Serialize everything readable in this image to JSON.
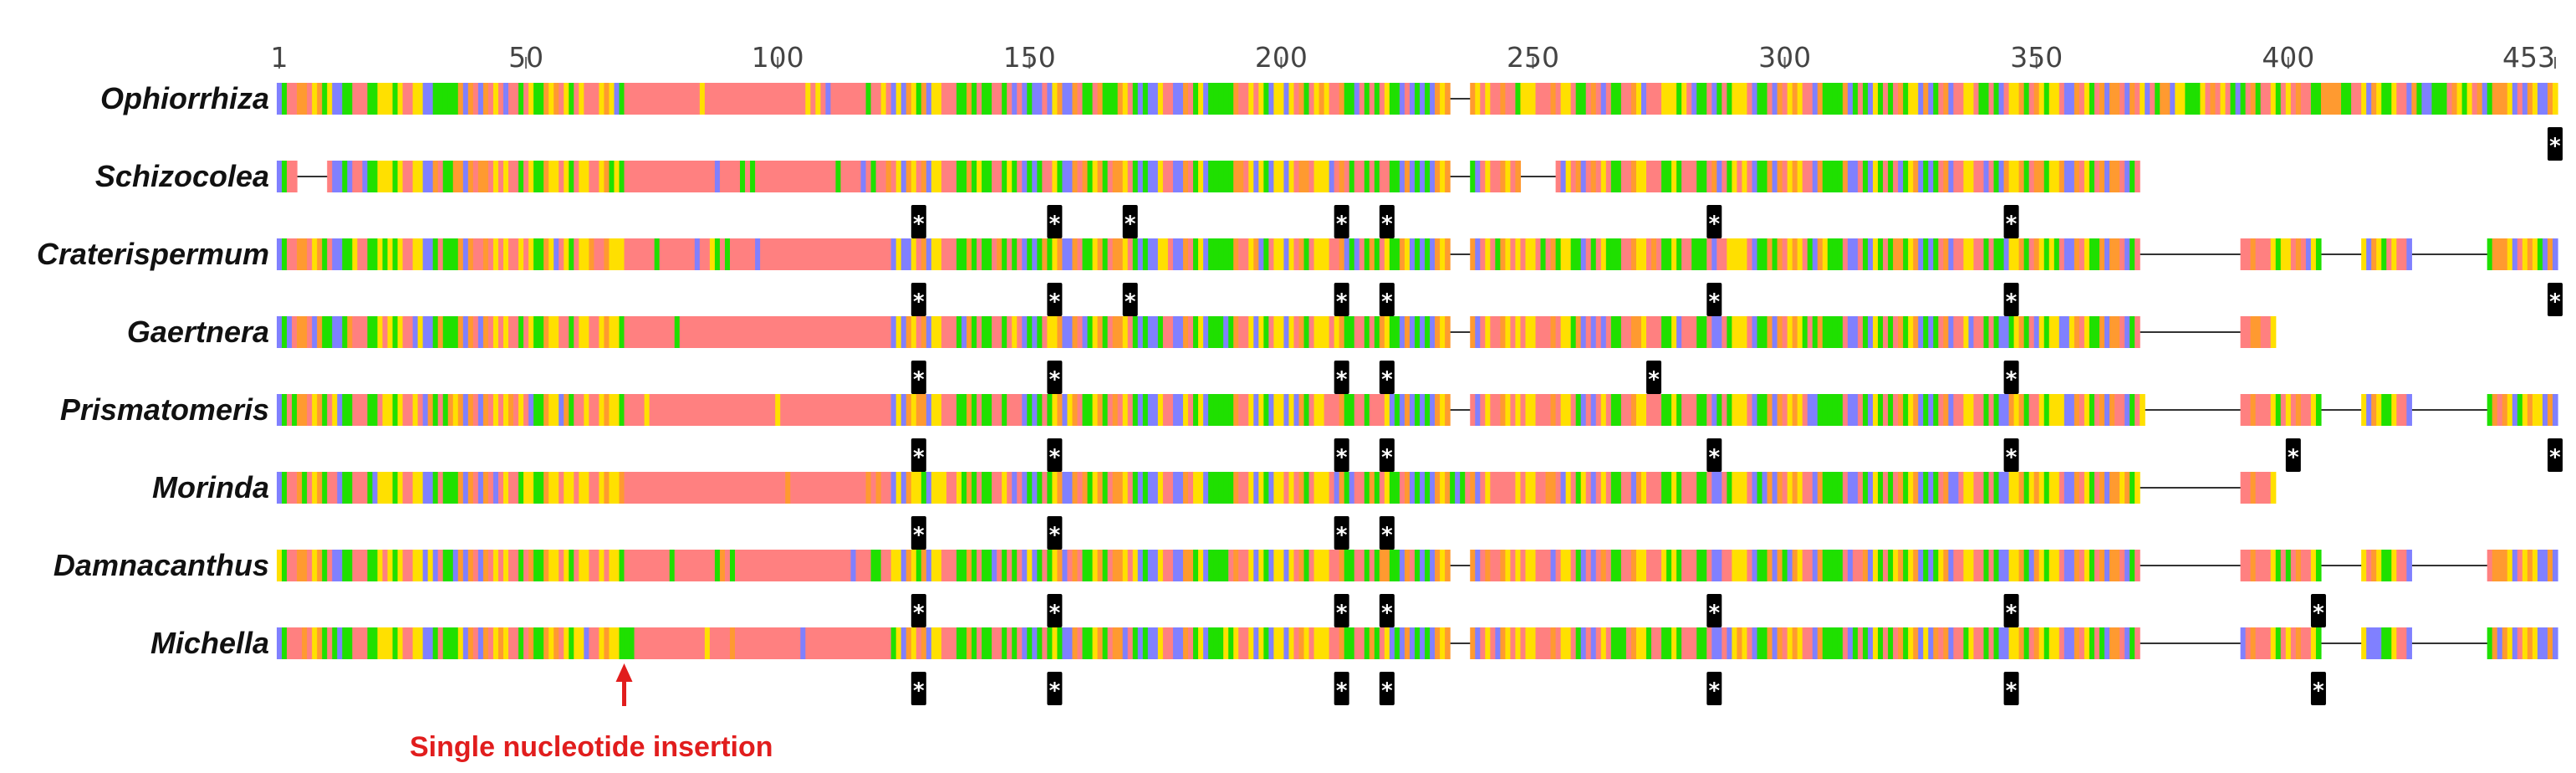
{
  "alignment": {
    "length": 453,
    "ticks": [
      {
        "pos": 1,
        "label": "1"
      },
      {
        "pos": 50,
        "label": "50"
      },
      {
        "pos": 100,
        "label": "100"
      },
      {
        "pos": 150,
        "label": "150"
      },
      {
        "pos": 200,
        "label": "200"
      },
      {
        "pos": 250,
        "label": "250"
      },
      {
        "pos": 300,
        "label": "300"
      },
      {
        "pos": 350,
        "label": "350"
      },
      {
        "pos": 400,
        "label": "400"
      },
      {
        "pos": 453,
        "label": "453"
      }
    ],
    "palette": {
      "A": "#ff8080",
      "G": "#ffe000",
      "C": "#ff9a30",
      "T": "#1fe000",
      "N": "#8080ff",
      "gap_line": "#333333",
      "marker_bg": "#000000",
      "marker_text": "#ffffff",
      "annotation": "#e11d1d"
    },
    "marker_symbol": "*",
    "taxa": [
      {
        "name": "Ophiorrhiza",
        "segments": [
          [
            1,
            69
          ],
          [
            70,
            233
          ],
          [
            238,
            453
          ]
        ],
        "stops": [
          453
        ]
      },
      {
        "name": "Schizocolea",
        "segments": [
          [
            1,
            4
          ],
          [
            11,
            69
          ],
          [
            70,
            233
          ],
          [
            238,
            247
          ],
          [
            255,
            370
          ]
        ],
        "stops": [
          128,
          155,
          170,
          212,
          221,
          286,
          345
        ]
      },
      {
        "name": "Craterispermum",
        "segments": [
          [
            1,
            69
          ],
          [
            70,
            233
          ],
          [
            238,
            370
          ],
          [
            391,
            406
          ],
          [
            415,
            424
          ],
          [
            440,
            453
          ]
        ],
        "stops": [
          128,
          155,
          170,
          212,
          221,
          286,
          345,
          453
        ]
      },
      {
        "name": "Gaertnera",
        "segments": [
          [
            1,
            69
          ],
          [
            70,
            233
          ],
          [
            238,
            370
          ],
          [
            391,
            397
          ]
        ],
        "stops": [
          128,
          155,
          212,
          221,
          274,
          345
        ]
      },
      {
        "name": "Prismatomeris",
        "segments": [
          [
            1,
            69
          ],
          [
            70,
            233
          ],
          [
            238,
            371
          ],
          [
            391,
            406
          ],
          [
            415,
            424
          ],
          [
            440,
            453
          ]
        ],
        "stops": [
          128,
          155,
          212,
          221,
          286,
          345,
          401,
          453
        ]
      },
      {
        "name": "Morinda",
        "segments": [
          [
            1,
            69
          ],
          [
            70,
            233
          ],
          [
            234,
            370
          ],
          [
            391,
            397
          ]
        ],
        "stops": [
          128,
          155,
          212,
          221
        ]
      },
      {
        "name": "Damnacanthus",
        "segments": [
          [
            1,
            69
          ],
          [
            70,
            233
          ],
          [
            238,
            370
          ],
          [
            391,
            406
          ],
          [
            415,
            424
          ],
          [
            440,
            453
          ]
        ],
        "stops": [
          128,
          155,
          212,
          221,
          286,
          345,
          406
        ]
      },
      {
        "name": "Michella",
        "segments": [
          [
            1,
            69
          ],
          [
            70,
            233
          ],
          [
            238,
            370
          ],
          [
            391,
            406
          ],
          [
            415,
            424
          ],
          [
            440,
            453
          ]
        ],
        "stops": [
          128,
          155,
          212,
          221,
          286,
          345,
          406
        ]
      }
    ]
  },
  "annotation": {
    "text": "Single nucleotide insertion",
    "position": 69
  }
}
